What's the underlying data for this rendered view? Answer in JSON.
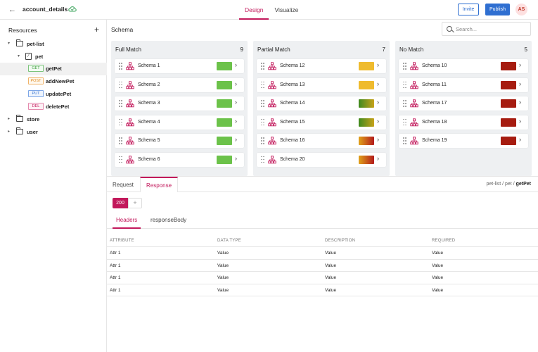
{
  "header": {
    "title": "account_details",
    "tabs": [
      {
        "label": "Design",
        "active": true
      },
      {
        "label": "Visualize",
        "active": false
      }
    ],
    "invite_label": "Invite",
    "publish_label": "Publish",
    "avatar_initials": "AS",
    "accent": "#c2185b",
    "primary": "#2f6fd1"
  },
  "sidebar": {
    "title": "Resources",
    "tree": [
      {
        "label": "pet-list",
        "type": "folder",
        "expanded": true
      },
      {
        "label": "pet",
        "type": "resource",
        "expanded": true
      },
      {
        "method": "GET",
        "label": "getPet",
        "selected": true
      },
      {
        "method": "POST",
        "label": "addNewPet"
      },
      {
        "method": "PUT",
        "label": "updatePet"
      },
      {
        "method": "DEL",
        "label": "deletePet"
      },
      {
        "label": "store",
        "type": "folder",
        "expanded": false
      },
      {
        "label": "user",
        "type": "folder",
        "expanded": false
      }
    ]
  },
  "schema": {
    "title": "Schema",
    "search_placeholder": "Search...",
    "columns": [
      {
        "title": "Full Match",
        "count": "9",
        "items": [
          {
            "label": "Schema 1",
            "match": "full"
          },
          {
            "label": "Schema 2",
            "match": "full"
          },
          {
            "label": "Schema 3",
            "match": "full"
          },
          {
            "label": "Schema 4",
            "match": "full"
          },
          {
            "label": "Schema 5",
            "match": "full"
          },
          {
            "label": "Schema 6",
            "match": "full"
          }
        ]
      },
      {
        "title": "Partial Match",
        "count": "7",
        "items": [
          {
            "label": "Schema 12",
            "match": "partial-yellow"
          },
          {
            "label": "Schema 13",
            "match": "partial-yellow"
          },
          {
            "label": "Schema 14",
            "match": "partial-green"
          },
          {
            "label": "Schema 15",
            "match": "partial-green"
          },
          {
            "label": "Schema 16",
            "match": "partial-red"
          },
          {
            "label": "Schema 20",
            "match": "partial-red"
          }
        ]
      },
      {
        "title": "No Match",
        "count": "5",
        "items": [
          {
            "label": "Schema 10",
            "match": "none"
          },
          {
            "label": "Schema 11",
            "match": "none"
          },
          {
            "label": "Schema 17",
            "match": "none"
          },
          {
            "label": "Schema 18",
            "match": "none"
          },
          {
            "label": "Schema 19",
            "match": "none"
          }
        ]
      }
    ],
    "swatch_colors": {
      "full": "#6cc24a",
      "partial-yellow": "#efbb2e",
      "partial-green": "linear-gradient(90deg,#3f8a1f,#c7a21a)",
      "partial-red": "linear-gradient(90deg,#e0a21a,#b31b1b)",
      "none": "#a61c10"
    }
  },
  "panel": {
    "tabs": [
      {
        "label": "Request",
        "active": false
      },
      {
        "label": "Response",
        "active": true
      }
    ],
    "breadcrumb": {
      "parts": [
        "pet-list",
        "pet"
      ],
      "current": "getPet",
      "separator": "/"
    },
    "status_code": "200",
    "add_code_label": "+",
    "sub_tabs": [
      {
        "label": "Headers",
        "active": true
      },
      {
        "label": "responseBody",
        "active": false
      }
    ],
    "table": {
      "columns": [
        "ATTRIBUTE",
        "DATA TYPE",
        "DESCRIPTION",
        "REQUIRED"
      ],
      "rows": [
        [
          "Attr 1",
          "Value",
          "Value",
          "Value"
        ],
        [
          "Attr 1",
          "Value",
          "Value",
          "Value"
        ],
        [
          "Attr 1",
          "Value",
          "Value",
          "Value"
        ],
        [
          "Attr 1",
          "Value",
          "Value",
          "Value"
        ]
      ]
    }
  }
}
